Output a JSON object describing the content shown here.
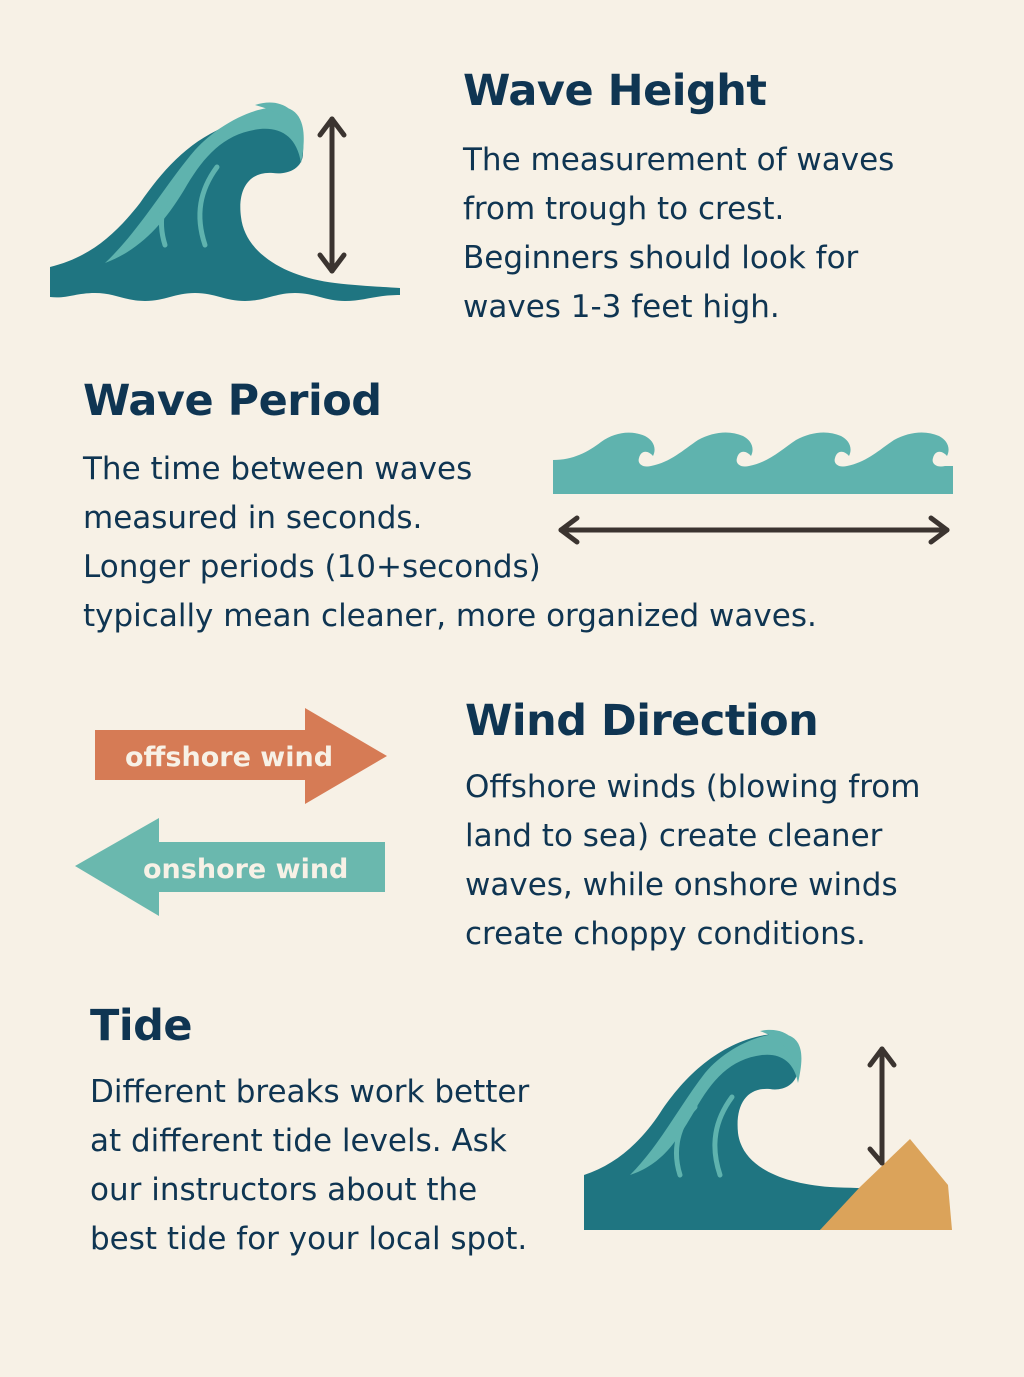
{
  "colors": {
    "background": "#f7f1e6",
    "text": "#0f3552",
    "wave_dark": "#1f7581",
    "wave_light": "#5fb3ae",
    "arrow_dark": "#3b3430",
    "offshore": "#d67b55",
    "onshore": "#6ab8ae",
    "sand": "#dba35a"
  },
  "sections": {
    "wave_height": {
      "title": "Wave Height",
      "body": "The measurement of waves\nfrom trough to crest.\nBeginners should look for\nwaves 1-3 feet high.",
      "icon": "breaking-wave-with-vertical-arrow"
    },
    "wave_period": {
      "title": "Wave Period",
      "body": "The time between waves\nmeasured in seconds.\nLonger periods (10+seconds)\ntypically mean cleaner, more organized waves.",
      "icon": "wave-band-with-horizontal-arrow"
    },
    "wind_direction": {
      "title": "Wind Direction",
      "body": "Offshore winds (blowing from\nland to sea) create cleaner\nwaves, while onshore winds\ncreate choppy conditions.",
      "offshore_label": "offshore wind",
      "onshore_label": "onshore wind"
    },
    "tide": {
      "title": "Tide",
      "body": "Different breaks work better\nat different tide levels. Ask\nour instructors about the\nbest tide for your local spot.",
      "icon": "breaking-wave-with-sand-and-arrow"
    }
  }
}
